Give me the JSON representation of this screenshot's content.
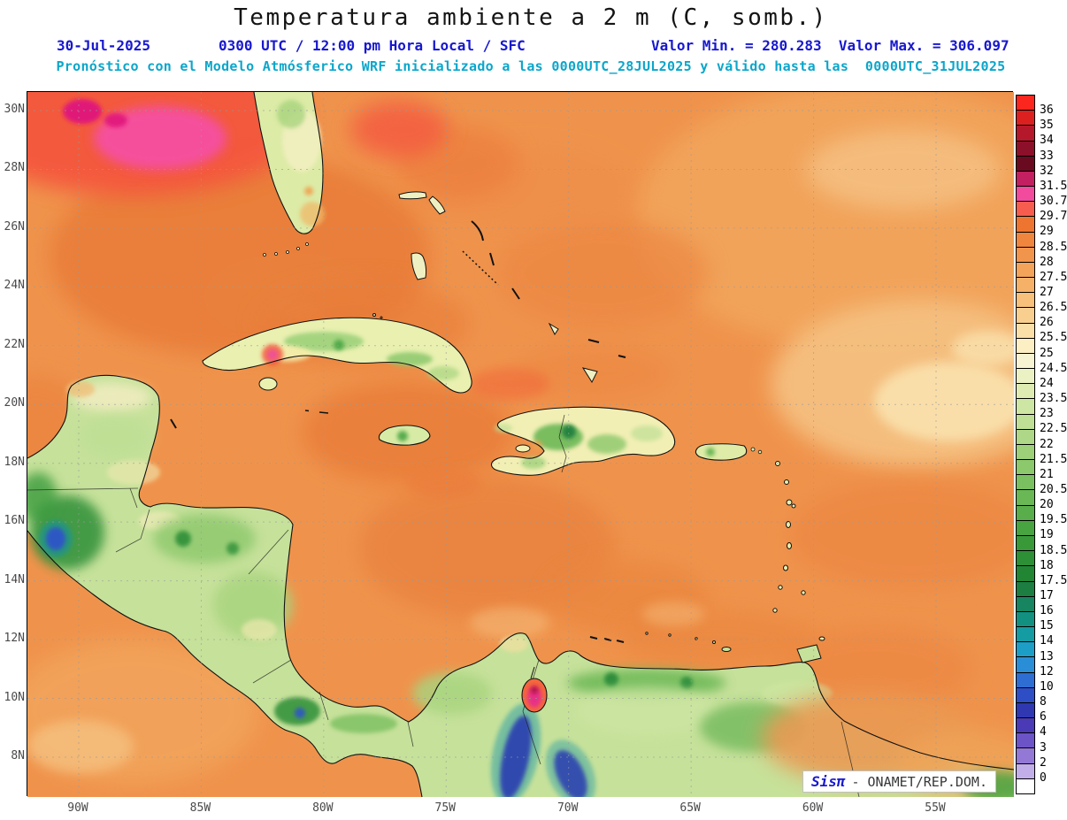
{
  "title": "Temperatura ambiente a 2 m (C, somb.)",
  "header": {
    "date": "30-Jul-2025",
    "time_info": "0300 UTC / 12:00 pm Hora Local / SFC",
    "minmax": "Valor Min. = 280.283  Valor Max. = 306.097",
    "valor_min": "280.283",
    "valor_max": "306.097",
    "forecast_line": "Pronóstico con el Modelo Atmósferico WRF inicializado a las 0000UTC_28JUL2025 y válido hasta las  0000UTC_31JUL2025"
  },
  "ui_colors": {
    "title_text": "#141414",
    "header_blue": "#1818CF",
    "header_cyan": "#0BA6CB",
    "ocean_base": "#EF934C",
    "gridline": "#9a9a9a"
  },
  "map": {
    "lat_labels": [
      "30N",
      "28N",
      "26N",
      "24N",
      "22N",
      "20N",
      "18N",
      "16N",
      "14N",
      "12N",
      "10N",
      "8N"
    ],
    "lon_labels": [
      "90W",
      "85W",
      "80W",
      "75W",
      "70W",
      "65W",
      "60W",
      "55W"
    ]
  },
  "colorbar": {
    "labels": [
      "36",
      "35",
      "34",
      "33",
      "32",
      "31.5",
      "30.7",
      "29.7",
      "29",
      "28.5",
      "28",
      "27.5",
      "27",
      "26.5",
      "26",
      "25.5",
      "25",
      "24.5",
      "24",
      "23.5",
      "23",
      "22.5",
      "22",
      "21.5",
      "21",
      "20.5",
      "20",
      "19.5",
      "19",
      "18.5",
      "18",
      "17.5",
      "17",
      "16",
      "15",
      "14",
      "13",
      "12",
      "10",
      "8",
      "6",
      "4",
      "3",
      "2",
      "0"
    ],
    "colors": [
      "#FB271E",
      "#DC2020",
      "#B5182B",
      "#8C102A",
      "#6A0A20",
      "#C22060",
      "#F24A9C",
      "#F65D4E",
      "#EE7530",
      "#F0853E",
      "#F1944C",
      "#F3A35A",
      "#F5B168",
      "#F7C07B",
      "#F9CF90",
      "#FBDFA8",
      "#FDEFC4",
      "#F7F4D4",
      "#EBF1C2",
      "#DEECB1",
      "#CEE6A3",
      "#BEDF95",
      "#AED887",
      "#9DD079",
      "#8CC86C",
      "#7BC060",
      "#6AB755",
      "#59AD4A",
      "#48A341",
      "#399939",
      "#2D8F36",
      "#228534",
      "#1C7E40",
      "#17855F",
      "#129180",
      "#149CA2",
      "#1C9EC6",
      "#2A8ED6",
      "#2E6ED2",
      "#2E4EC6",
      "#2F38B0",
      "#4A3AB6",
      "#6C54C6",
      "#9478D6",
      "#C2AEE8",
      "#FFFFFF"
    ]
  },
  "footer": {
    "logo": "Sisπ",
    "text": "- ONAMET/REP.DOM."
  }
}
